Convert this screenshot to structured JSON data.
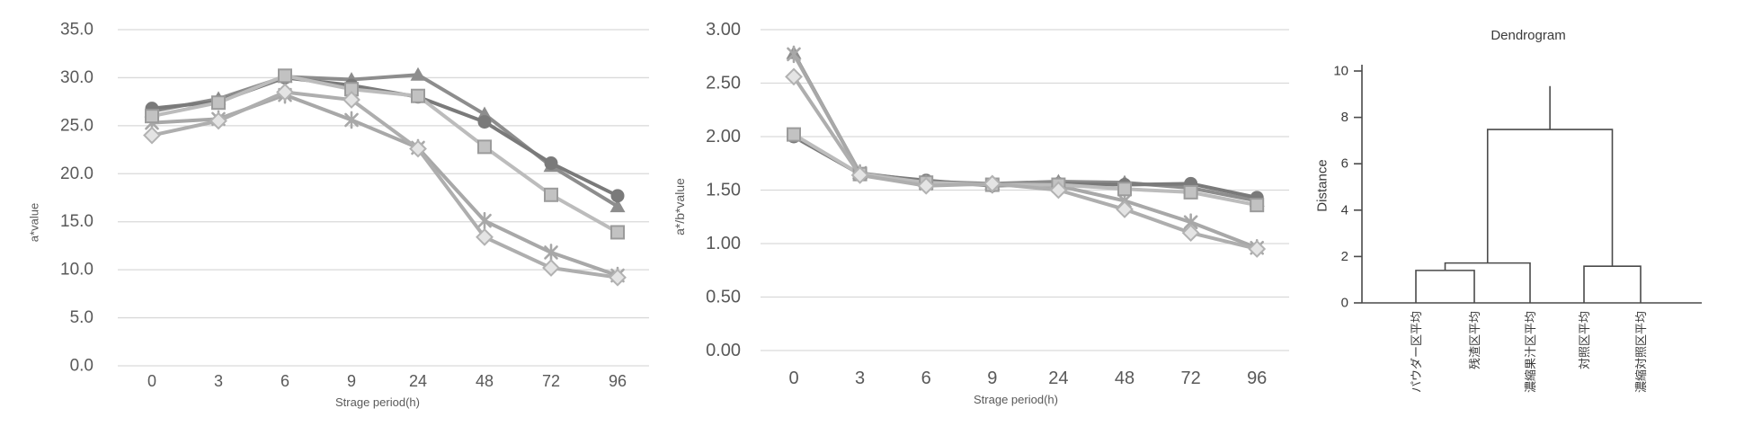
{
  "page": {
    "background": "#ffffff"
  },
  "colors": {
    "grid": "#d9d9d9",
    "tick_text": "#595959",
    "dendro_line": "#4a4a4a",
    "dendro_text": "#3a3a3a"
  },
  "chart_data": [
    {
      "type": "line",
      "title": "",
      "xlabel": "Strage period(h)",
      "ylabel": "a*value",
      "categories": [
        "0",
        "3",
        "6",
        "9",
        "24",
        "48",
        "72",
        "96"
      ],
      "yticks": [
        "35.0",
        "30.0",
        "25.0",
        "20.0",
        "15.0",
        "10.0",
        "5.0",
        "0.0"
      ],
      "ylim": [
        0,
        35
      ],
      "grid": true,
      "legend": "none",
      "series": [
        {
          "name": "triangle-series",
          "marker": "triangle",
          "color": "#8d8d8d",
          "values": [
            26.5,
            27.8,
            30.1,
            29.8,
            30.3,
            26.2,
            20.8,
            16.6
          ]
        },
        {
          "name": "circle-series",
          "marker": "circle",
          "color": "#7a7a7a",
          "values": [
            26.8,
            27.5,
            30.0,
            29.2,
            28.0,
            25.4,
            21.1,
            17.7
          ]
        },
        {
          "name": "asterisk-series",
          "marker": "asterisk",
          "color": "#a8a8a8",
          "values": [
            25.3,
            25.7,
            28.2,
            25.6,
            22.7,
            15.1,
            11.8,
            9.4
          ]
        },
        {
          "name": "square-series",
          "marker": "square",
          "color": "#bcbcbc",
          "marker_fill": "#c2c2c2",
          "marker_stroke": "#9b9b9b",
          "values": [
            26.0,
            27.4,
            30.2,
            28.8,
            28.1,
            22.8,
            17.8,
            13.9
          ]
        },
        {
          "name": "diamond-series",
          "marker": "diamond",
          "color": "#aeaeae",
          "marker_fill": "#e4e4e4",
          "marker_stroke": "#b2b2b2",
          "values": [
            24.0,
            25.5,
            28.5,
            27.7,
            22.6,
            13.4,
            10.2,
            9.2
          ]
        }
      ]
    },
    {
      "type": "line",
      "title": "",
      "xlabel": "Strage period(h)",
      "ylabel": "a*/b*value",
      "categories": [
        "0",
        "3",
        "6",
        "9",
        "24",
        "48",
        "72",
        "96"
      ],
      "yticks": [
        "3.00",
        "2.50",
        "2.00",
        "1.50",
        "1.00",
        "0.50",
        "0.00"
      ],
      "ylim": [
        0,
        3
      ],
      "grid": true,
      "legend": "none",
      "series": [
        {
          "name": "triangle-series",
          "marker": "triangle",
          "color": "#8d8d8d",
          "values": [
            2.78,
            1.66,
            1.58,
            1.56,
            1.58,
            1.57,
            1.52,
            1.4
          ]
        },
        {
          "name": "circle-series",
          "marker": "circle",
          "color": "#7a7a7a",
          "values": [
            2.0,
            1.65,
            1.59,
            1.54,
            1.56,
            1.55,
            1.56,
            1.43
          ]
        },
        {
          "name": "asterisk-series",
          "marker": "asterisk",
          "color": "#a8a8a8",
          "values": [
            2.77,
            1.66,
            1.56,
            1.55,
            1.54,
            1.4,
            1.2,
            0.96
          ]
        },
        {
          "name": "square-series",
          "marker": "square",
          "color": "#bcbcbc",
          "marker_fill": "#c2c2c2",
          "marker_stroke": "#9b9b9b",
          "values": [
            2.02,
            1.65,
            1.57,
            1.55,
            1.55,
            1.51,
            1.48,
            1.36
          ]
        },
        {
          "name": "diamond-series",
          "marker": "diamond",
          "color": "#aeaeae",
          "marker_fill": "#e4e4e4",
          "marker_stroke": "#b2b2b2",
          "values": [
            2.56,
            1.64,
            1.54,
            1.56,
            1.5,
            1.32,
            1.1,
            0.95
          ]
        }
      ]
    },
    {
      "type": "dendrogram",
      "title": "Dendrogram",
      "ylabel": "Distance",
      "ylim": [
        0,
        10
      ],
      "yticks": [
        "10",
        "8",
        "6",
        "4",
        "2",
        "0"
      ],
      "leaves": [
        "パウダー区平均",
        "残渣区平均",
        "濃縮果汁区平均",
        "対照区平均",
        "濃縮対照区平均"
      ],
      "merges": [
        {
          "a": 0,
          "b": 1,
          "height": 1.4
        },
        {
          "a": 5,
          "b": 2,
          "height": 1.72
        },
        {
          "a": 3,
          "b": 4,
          "height": 1.58
        },
        {
          "a": 6,
          "b": 7,
          "height": 7.48
        }
      ],
      "root_stem_top": 9.35
    }
  ]
}
